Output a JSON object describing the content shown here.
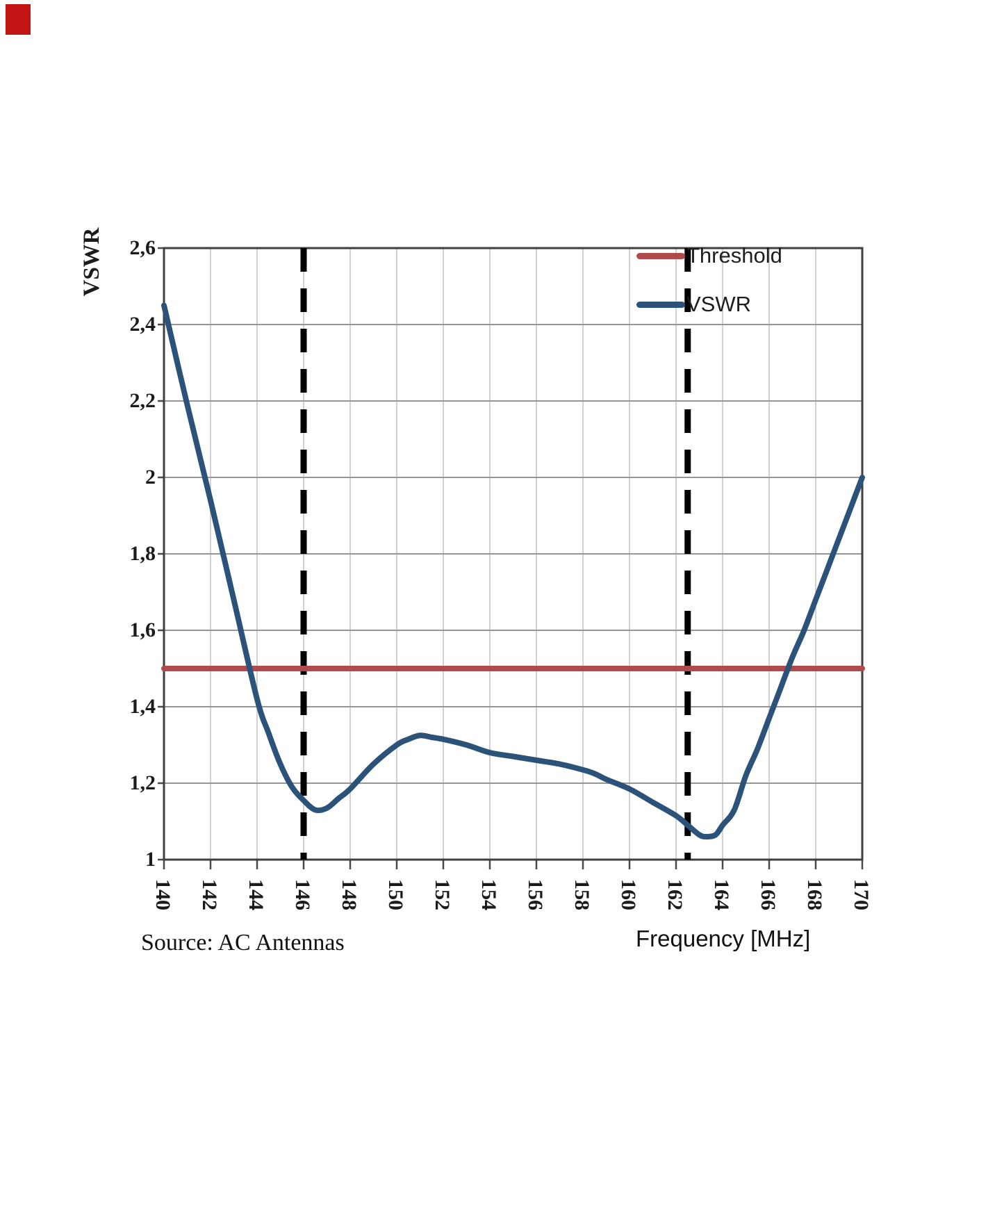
{
  "page": {
    "corner_marker_color": "#c31414"
  },
  "chart_data": {
    "type": "line",
    "title": "",
    "xlabel": "Frequency [MHz]",
    "ylabel": "VSWR",
    "source_note": "Source: AC Antennas",
    "xlim": [
      140,
      170
    ],
    "ylim": [
      1.0,
      2.6
    ],
    "x_major_step": 2,
    "y_major_step": 0.2,
    "grid": true,
    "legend_position": "top-right-inside",
    "x_ticks": [
      {
        "label": "140",
        "value": 140
      },
      {
        "label": "142",
        "value": 142
      },
      {
        "label": "144",
        "value": 144
      },
      {
        "label": "146",
        "value": 146
      },
      {
        "label": "148",
        "value": 148
      },
      {
        "label": "150",
        "value": 150
      },
      {
        "label": "152",
        "value": 152
      },
      {
        "label": "154",
        "value": 154
      },
      {
        "label": "156",
        "value": 156
      },
      {
        "label": "158",
        "value": 158
      },
      {
        "label": "160",
        "value": 160
      },
      {
        "label": "162",
        "value": 162
      },
      {
        "label": "164",
        "value": 164
      },
      {
        "label": "166",
        "value": 166
      },
      {
        "label": "168",
        "value": 168
      },
      {
        "label": "170",
        "value": 170
      }
    ],
    "y_ticks": [
      {
        "label": "1",
        "value": 1.0
      },
      {
        "label": "1,2",
        "value": 1.2
      },
      {
        "label": "1,4",
        "value": 1.4
      },
      {
        "label": "1,6",
        "value": 1.6
      },
      {
        "label": "1,8",
        "value": 1.8
      },
      {
        "label": "2",
        "value": 2.0
      },
      {
        "label": "2,2",
        "value": 2.2
      },
      {
        "label": "2,4",
        "value": 2.4
      },
      {
        "label": "2,6",
        "value": 2.6
      }
    ],
    "band_markers": {
      "style": "dashed-vertical",
      "color": "#000000",
      "x_values": [
        146,
        162.5
      ]
    },
    "series": [
      {
        "name": "Threshold",
        "type": "hline",
        "value": 1.5,
        "color": "#b04a4d"
      },
      {
        "name": "VSWR",
        "type": "line",
        "color": "#2b5278",
        "points": [
          [
            140,
            2.45
          ],
          [
            141,
            2.19
          ],
          [
            142,
            1.94
          ],
          [
            143,
            1.68
          ],
          [
            144,
            1.42
          ],
          [
            144.5,
            1.33
          ],
          [
            145,
            1.25
          ],
          [
            145.5,
            1.19
          ],
          [
            146,
            1.155
          ],
          [
            146.5,
            1.13
          ],
          [
            147,
            1.135
          ],
          [
            147.5,
            1.16
          ],
          [
            148,
            1.185
          ],
          [
            149,
            1.25
          ],
          [
            150,
            1.3
          ],
          [
            150.5,
            1.315
          ],
          [
            151,
            1.325
          ],
          [
            151.5,
            1.32
          ],
          [
            152,
            1.315
          ],
          [
            153,
            1.3
          ],
          [
            154,
            1.28
          ],
          [
            155,
            1.27
          ],
          [
            156,
            1.26
          ],
          [
            157,
            1.25
          ],
          [
            158,
            1.235
          ],
          [
            158.5,
            1.225
          ],
          [
            159,
            1.21
          ],
          [
            160,
            1.185
          ],
          [
            161,
            1.15
          ],
          [
            162,
            1.115
          ],
          [
            162.5,
            1.09
          ],
          [
            163,
            1.065
          ],
          [
            163.3,
            1.06
          ],
          [
            163.7,
            1.065
          ],
          [
            164,
            1.09
          ],
          [
            164.5,
            1.13
          ],
          [
            165,
            1.22
          ],
          [
            165.5,
            1.29
          ],
          [
            166,
            1.37
          ],
          [
            166.5,
            1.45
          ],
          [
            167,
            1.53
          ],
          [
            167.5,
            1.6
          ],
          [
            168,
            1.68
          ],
          [
            168.5,
            1.76
          ],
          [
            169,
            1.84
          ],
          [
            169.5,
            1.92
          ],
          [
            170,
            2.0
          ]
        ]
      }
    ],
    "colors": {
      "grid_vertical": "#c6c6c6",
      "grid_horizontal": "#969696",
      "border": "#3f3f3f",
      "tick": "#4a4a4a"
    }
  }
}
